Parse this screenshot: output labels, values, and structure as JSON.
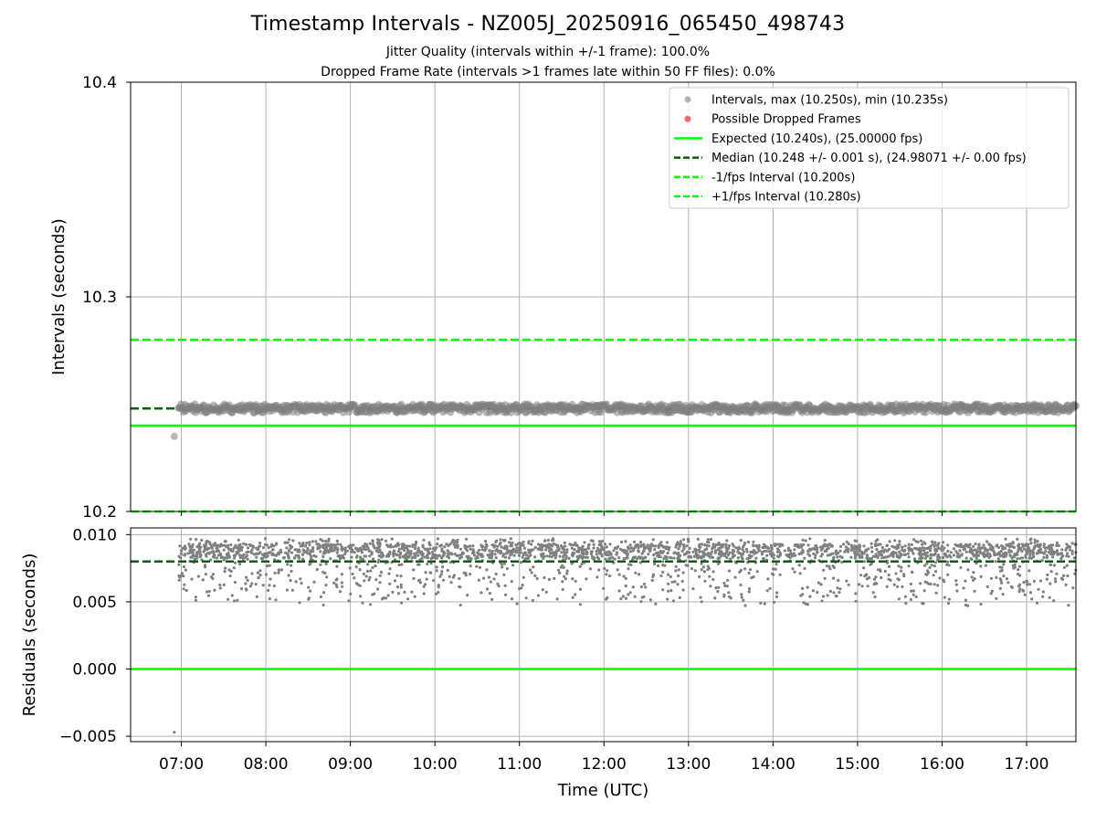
{
  "title": "Timestamp Intervals - NZ005J_20250916_065450_498743",
  "subtitle_1": "Jitter Quality (intervals within +/-1 frame): 100.0%",
  "subtitle_2": "Dropped Frame Rate (intervals >1 frames late within 50 FF files): 0.0%",
  "colors": {
    "intervals": "#808080",
    "dropped": "#ff3030",
    "expected": "#00ff00",
    "median": "#006400",
    "fps_interval": "#00ff00",
    "grid": "#b0b0b0"
  },
  "chart_data": [
    {
      "type": "scatter",
      "panel": "top",
      "xlabel": "",
      "ylabel": "Intervals (seconds)",
      "ylim": [
        10.2,
        10.4
      ],
      "yticks": [
        "10.2",
        "10.3",
        "10.4"
      ],
      "grid": true,
      "legend_position": "top-right",
      "series": [
        {
          "name": "Intervals, max (10.250s), min (10.235s)",
          "kind": "scatter",
          "color": "#808080",
          "y_min": 10.246,
          "y_max": 10.25,
          "typical": 10.248,
          "outlier": {
            "x": "06:55",
            "y": 10.235
          }
        },
        {
          "name": "Possible Dropped Frames",
          "kind": "scatter",
          "color": "#ff3030",
          "points": []
        },
        {
          "name": "Expected (10.240s), (25.00000 fps)",
          "kind": "hline",
          "y": 10.24,
          "style": "solid",
          "color": "#00ff00"
        },
        {
          "name": "Median (10.248 +/- 0.001 s), (24.98071 +/- 0.00 fps)",
          "kind": "hline",
          "y": 10.248,
          "style": "dashed",
          "color": "#006400"
        },
        {
          "name": "-1/fps Interval (10.200s)",
          "kind": "hline",
          "y": 10.2,
          "style": "dashed",
          "color": "#00ff00"
        },
        {
          "name": "+1/fps Interval (10.280s)",
          "kind": "hline",
          "y": 10.28,
          "style": "dashed",
          "color": "#00ff00"
        }
      ]
    },
    {
      "type": "scatter",
      "panel": "bottom",
      "xlabel": "Time (UTC)",
      "ylabel": "Residuals (seconds)",
      "ylim": [
        -0.0054,
        0.0105
      ],
      "yticks": [
        "−0.005",
        "0.000",
        "0.005",
        "0.010"
      ],
      "xticks": [
        "07:00",
        "08:00",
        "09:00",
        "10:00",
        "11:00",
        "12:00",
        "13:00",
        "14:00",
        "15:00",
        "16:00",
        "17:00"
      ],
      "xlim": [
        "06:24",
        "17:35"
      ],
      "grid": true,
      "series": [
        {
          "name": "residuals",
          "kind": "scatter",
          "color": "#808080",
          "y_range": [
            0.004,
            0.0097
          ],
          "dense_band": [
            0.0082,
            0.0093
          ],
          "outlier": {
            "x": "06:55",
            "y": -0.0047
          }
        },
        {
          "name": "expected",
          "kind": "hline",
          "y": 0.0,
          "color": "#00ff00",
          "style": "solid"
        },
        {
          "name": "median",
          "kind": "hline",
          "y": 0.008,
          "color": "#006400",
          "style": "dashed"
        }
      ]
    }
  ]
}
